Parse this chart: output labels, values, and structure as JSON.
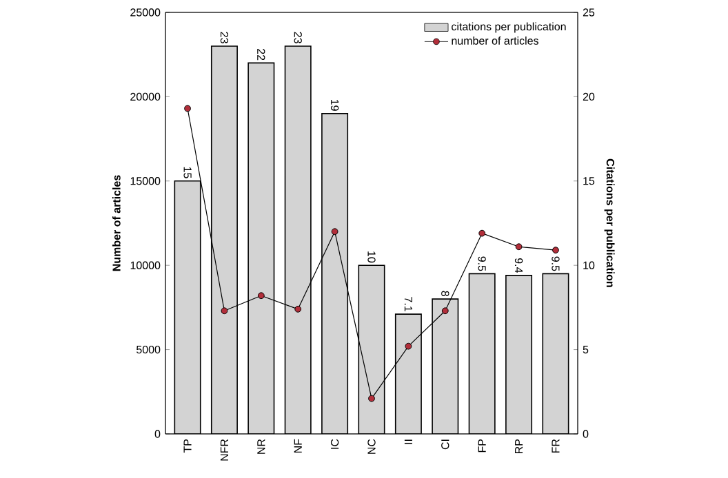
{
  "chart_data": {
    "type": "bar",
    "categories": [
      "TP",
      "NFR",
      "NR",
      "NF",
      "IC",
      "NC",
      "II",
      "CI",
      "FP",
      "RP",
      "FR"
    ],
    "series": [
      {
        "name": "citations per publication",
        "axis": "y2",
        "color": "#d3d3d3",
        "values": [
          15,
          23,
          22,
          23,
          19,
          10,
          7.1,
          8,
          9.5,
          9.4,
          9.5
        ],
        "value_labels": [
          "15",
          "23",
          "22",
          "23",
          "19",
          "10",
          "7.1",
          "8",
          "9.5",
          "9.4",
          "9.5"
        ]
      },
      {
        "name": "number of articles",
        "type": "line",
        "axis": "y",
        "color": "#b22e3a",
        "marker": "circle",
        "values": [
          19300,
          7300,
          8200,
          7400,
          12000,
          2100,
          5200,
          7300,
          11900,
          11100,
          10900
        ]
      }
    ],
    "ylabel": "Number of articles",
    "y2label": "Citations per publication",
    "ylim": [
      0,
      25000
    ],
    "yticks": [
      0,
      5000,
      10000,
      15000,
      20000,
      25000
    ],
    "y2lim": [
      0,
      25
    ],
    "y2ticks": [
      0,
      5,
      10,
      15,
      20,
      25
    ],
    "legend": "top right"
  }
}
